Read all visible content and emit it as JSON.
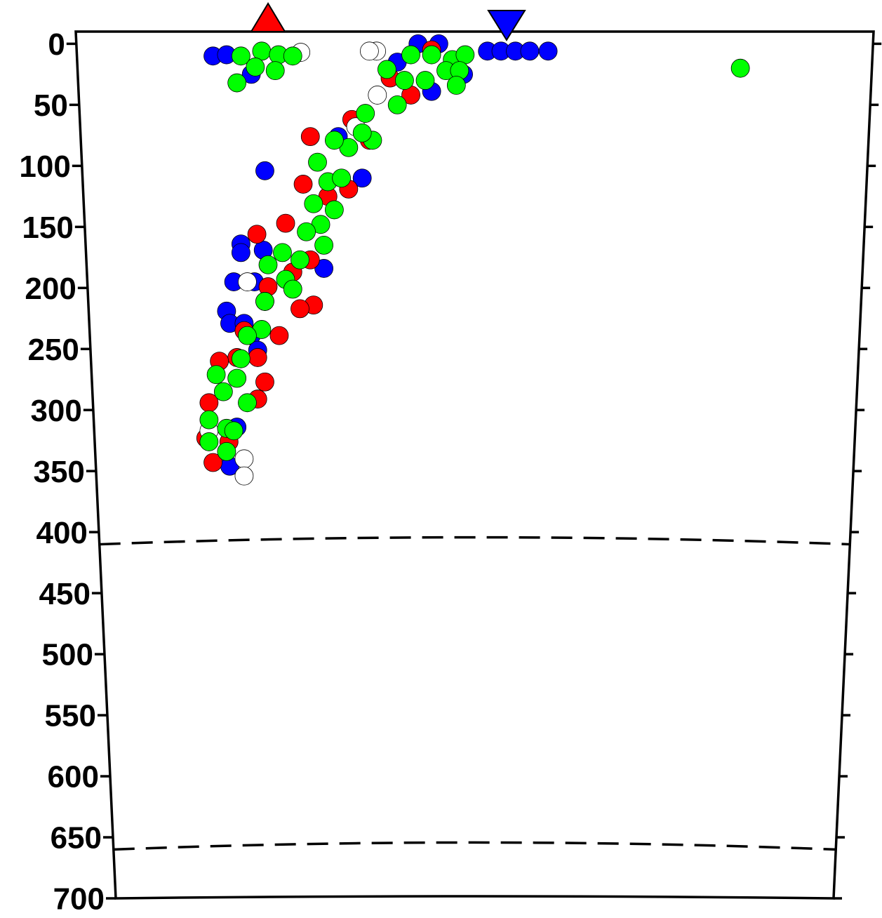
{
  "chart_data": {
    "type": "scatter",
    "xlim": [
      0,
      1000
    ],
    "ylim": [
      -10,
      700
    ],
    "y_inverted": true,
    "yticks": [
      0,
      50,
      100,
      150,
      200,
      250,
      300,
      350,
      400,
      450,
      500,
      550,
      600,
      650,
      700
    ],
    "hlines": [
      410,
      660
    ],
    "markers": [
      {
        "x": 241,
        "color": "#ff0000",
        "shape": "triangle-up"
      },
      {
        "x": 540,
        "color": "#0000ff",
        "shape": "triangle-down"
      }
    ],
    "series": [
      {
        "color": "#0000ff",
        "x": [
          172,
          189,
          220,
          403,
          429,
          455,
          446,
          486,
          516,
          533,
          551,
          569,
          592,
          237,
          359,
          329,
          207,
          207,
          235,
          311,
          198,
          224,
          189,
          193,
          211,
          220,
          228,
          193,
          202
        ],
        "y": [
          10,
          9,
          25,
          15,
          0,
          0,
          39,
          25,
          6,
          6,
          6,
          6,
          6,
          104,
          110,
          76,
          164,
          171,
          169,
          184,
          195,
          195,
          219,
          229,
          229,
          239,
          251,
          346,
          314
        ]
      },
      {
        "color": "#ff0000",
        "x": [
          294,
          346,
          368,
          342,
          285,
          316,
          263,
          227,
          294,
          272,
          241,
          237,
          298,
          281,
          255,
          211,
          228,
          237,
          202,
          180,
          228,
          167,
          163,
          172,
          192,
          420,
          446,
          394
        ],
        "y": [
          76,
          62,
          79,
          119,
          115,
          125,
          147,
          156,
          177,
          187,
          199,
          211,
          214,
          217,
          239,
          235,
          257,
          277,
          257,
          260,
          291,
          294,
          323,
          343,
          326,
          42,
          5,
          28
        ]
      },
      {
        "color": "#ffffff",
        "x": [
          282,
          377,
          368,
          378,
          351,
          215,
          211,
          211,
          167
        ],
        "y": [
          7,
          6,
          6,
          42,
          68,
          195,
          340,
          354,
          317
        ]
      },
      {
        "color": "#00ff00",
        "x": [
          202,
          207,
          233,
          254,
          272,
          250,
          225,
          390,
          420,
          446,
          472,
          488,
          464,
          481,
          403,
          412,
          438,
          477,
          833,
          363,
          372,
          359,
          342,
          324,
          303,
          316,
          333,
          298,
          324,
          307,
          289,
          311,
          281,
          259,
          241,
          263,
          272,
          237,
          233,
          215,
          207,
          202,
          176,
          185,
          215,
          167,
          189,
          198,
          167,
          189
        ],
        "y": [
          32,
          10,
          6,
          9,
          10,
          22,
          19,
          21,
          9,
          9,
          13,
          9,
          22,
          22,
          50,
          30,
          30,
          34,
          20,
          57,
          79,
          73,
          85,
          79,
          97,
          113,
          110,
          131,
          136,
          148,
          154,
          165,
          177,
          171,
          181,
          193,
          201,
          211,
          234,
          239,
          258,
          274,
          271,
          285,
          294,
          308,
          315,
          317,
          326,
          334
        ]
      }
    ]
  }
}
